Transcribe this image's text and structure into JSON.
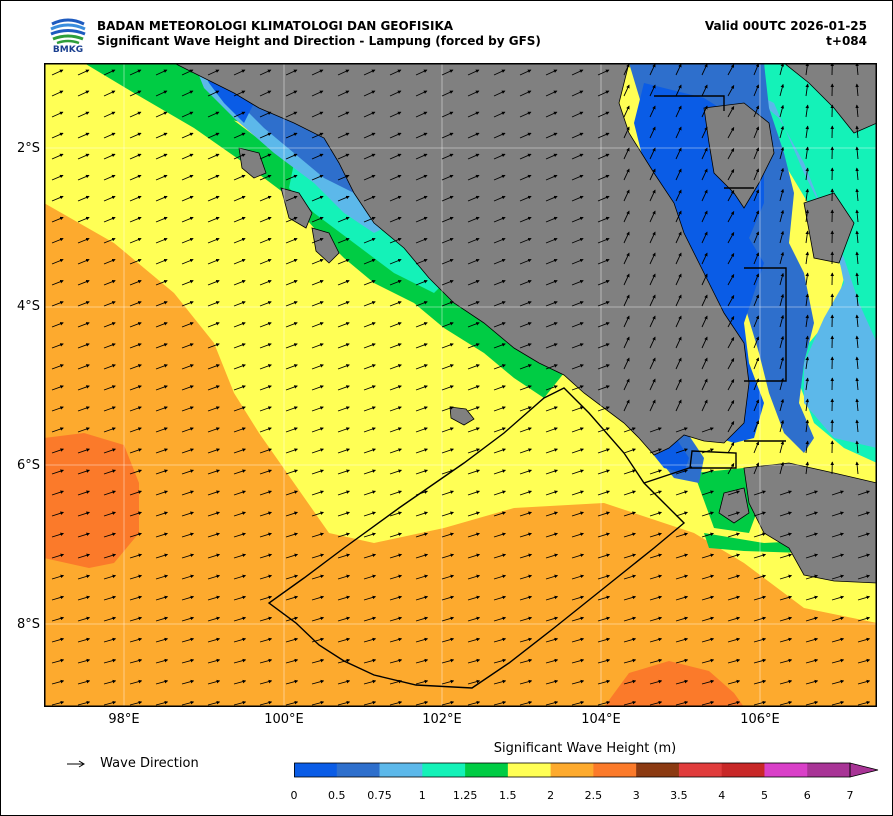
{
  "header": {
    "agency": "BADAN METEOROLOGI KLIMATOLOGI DAN GEOFISIKA",
    "subtitle": "Significant Wave Height and Direction - Lampung (forced by GFS)",
    "valid": "Valid 00UTC 2026-01-25",
    "lead": "t+084",
    "logo_text": "BMKG"
  },
  "map": {
    "lat_labels": [
      "2°S",
      "4°S",
      "6°S",
      "8°S"
    ],
    "lon_labels": [
      "98°E",
      "100°E",
      "102°E",
      "104°E",
      "106°E"
    ],
    "land_color": "#808080",
    "dominant_wave_direction": "north-east"
  },
  "legend": {
    "arrow_label": "Wave Direction",
    "colorbar_title": "Significant Wave Height (m)",
    "ticks": [
      "0",
      "0.5",
      "0.75",
      "1",
      "1.25",
      "1.5",
      "2",
      "2.5",
      "3",
      "3.5",
      "4",
      "5",
      "6",
      "7"
    ],
    "colors": [
      "#0a5ce6",
      "#2e6fcc",
      "#5cb8ea",
      "#14f2b8",
      "#00cc44",
      "#ffff55",
      "#fdaa2e",
      "#fb7a2a",
      "#8b3a12",
      "#e03c3c",
      "#c82828",
      "#d940c8",
      "#a83496"
    ]
  }
}
